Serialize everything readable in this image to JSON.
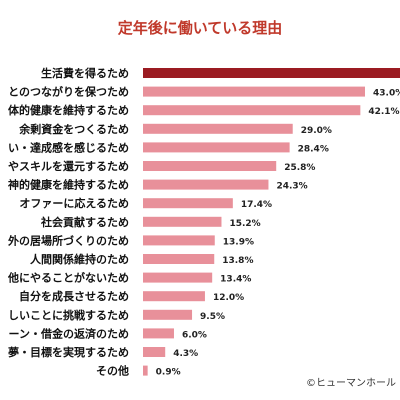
{
  "chart_data": {
    "type": "bar",
    "orientation": "horizontal",
    "title": "定年後に働いている理由",
    "credit": "©ヒューマンホール",
    "categories": [
      "生活費を得るため",
      "とのつながりを保つため",
      "体的健康を維持するため",
      "余剰資金をつくるため",
      "い・達成感を感じるため",
      "やスキルを還元するため",
      "神的健康を維持するため",
      "オファーに応えるため",
      "社会貢献するため",
      "外の居場所づくりのため",
      "人間関係維持のため",
      "他にやることがないため",
      "自分を成長させるため",
      "しいことに挑戦するため",
      "ーン・借金の返済のため",
      "夢・目標を実現するため",
      "その他"
    ],
    "values": [
      null,
      43.0,
      42.1,
      29.0,
      28.4,
      25.8,
      24.3,
      17.4,
      15.2,
      13.9,
      13.8,
      13.4,
      12.0,
      9.5,
      6.0,
      4.3,
      0.9
    ],
    "value_labels": [
      "",
      "43.0%",
      "42.1%",
      "29.0%",
      "28.4%",
      "25.8%",
      "24.3%",
      "17.4%",
      "15.2%",
      "13.9%",
      "13.8%",
      "13.4%",
      "12.0%",
      "9.5%",
      "6.0%",
      "4.3%",
      "0.9%"
    ],
    "first_bar_exceeds_view": true,
    "xlim": [
      0,
      43.0
    ],
    "grid": false,
    "legend": "none",
    "colors": {
      "title": "#c0392b",
      "first_bar": "#9b1b22",
      "bar": "#e8909a",
      "label_text": "#111111",
      "value_text": "#222222"
    }
  }
}
